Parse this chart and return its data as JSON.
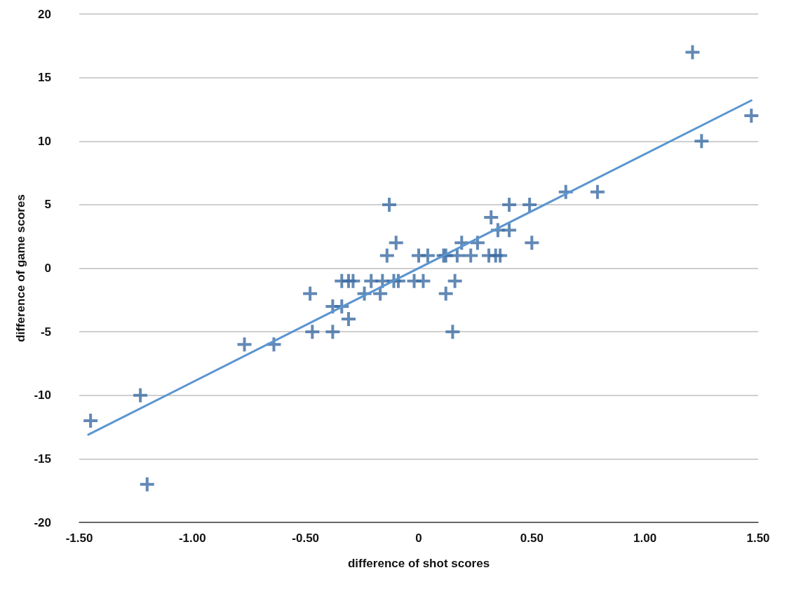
{
  "chart_data": {
    "type": "scatter",
    "xlabel": "difference of shot scores",
    "ylabel": "difference of game scores",
    "xlim": [
      -1.5,
      1.5
    ],
    "ylim": [
      -20,
      20
    ],
    "xticks": [
      {
        "value": -1.5,
        "label": "-1.50"
      },
      {
        "value": -1,
        "label": "-1.00"
      },
      {
        "value": -0.5,
        "label": "-0.50"
      },
      0,
      {
        "value": 0.5,
        "label": "0.50"
      },
      {
        "value": 1,
        "label": "1.00"
      },
      {
        "value": 1.5,
        "label": "1.50"
      }
    ],
    "yticks": [
      -20,
      -15,
      -10,
      -5,
      0,
      5,
      10,
      15,
      20
    ],
    "grid": "y",
    "series": [
      {
        "marker": "cross",
        "color": "#3b6ba3",
        "x": [
          -1.45,
          -1.23,
          -1.2,
          -0.77,
          -0.64,
          -0.48,
          -0.47,
          -0.38,
          -0.38,
          -0.34,
          -0.31,
          -0.34,
          -0.31,
          -0.29,
          -0.21,
          -0.16,
          -0.11,
          -0.09,
          -0.02,
          0.02,
          -0.24,
          -0.17,
          0.12,
          0.16,
          0.15,
          -0.14,
          0.0,
          0.04,
          0.11,
          0.12,
          0.17,
          0.23,
          0.31,
          0.34,
          0.36,
          -0.1,
          0.19,
          0.26,
          0.5,
          0.35,
          0.4,
          0.32,
          -0.13,
          0.4,
          0.49,
          0.65,
          0.79,
          1.25,
          1.47,
          1.21
        ],
        "values": [
          -12,
          -10,
          -17,
          -6,
          -6,
          -2,
          -5,
          -3,
          -5,
          -3,
          -4,
          -1,
          -1,
          -1,
          -1,
          -1,
          -1,
          -1,
          -1,
          -1,
          -2,
          -2,
          -2,
          -1,
          -5,
          1,
          1,
          1,
          1,
          1,
          1,
          1,
          1,
          1,
          1,
          2,
          2,
          2,
          2,
          3,
          3,
          4,
          5,
          5,
          5,
          6,
          6,
          10,
          12,
          17
        ]
      },
      {
        "type": "line",
        "color": "#5b95d0",
        "line_style": "solid",
        "x": [
          -1.46,
          1.47
        ],
        "values": [
          -13.1,
          13.2
        ]
      }
    ]
  }
}
